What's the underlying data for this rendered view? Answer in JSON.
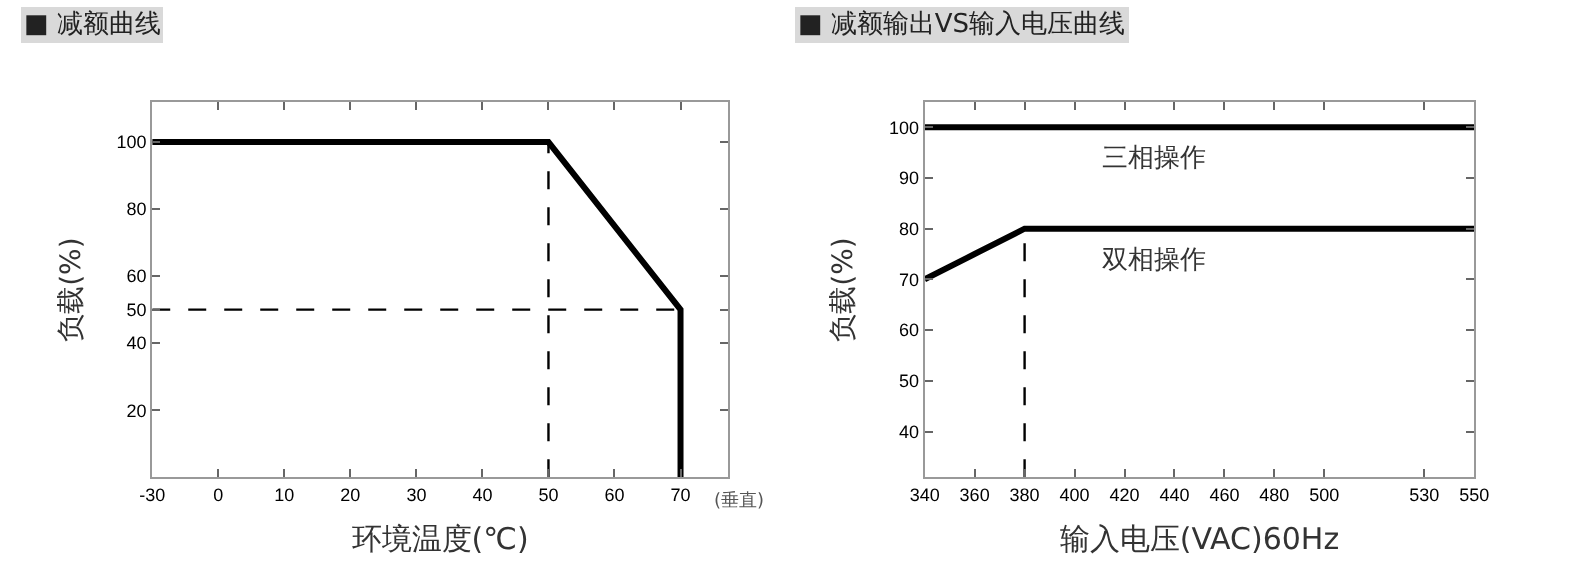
{
  "chart_data": [
    {
      "type": "line",
      "title": "■ 减额曲线",
      "xlabel": "环境温度(℃)",
      "ylabel": "负载(%)",
      "series": [
        {
          "color": "#000000",
          "x": [
            "-30",
            "50",
            "70",
            "70"
          ],
          "values": [
            100,
            100,
            50,
            0
          ],
          "line_style": "solid"
        },
        {
          "color": "#000000",
          "x": [
            "50",
            "50"
          ],
          "values": [
            0,
            100
          ],
          "line_style": "dashed"
        },
        {
          "color": "#000000",
          "x": [
            "-30",
            "70"
          ],
          "values": [
            50,
            50
          ],
          "line_style": "dashed"
        }
      ],
      "categories": [
        "-30",
        "0",
        "10",
        "20",
        "30",
        "40",
        "50",
        "60",
        "70"
      ],
      "ylim": [
        0,
        112
      ],
      "yticks": [
        20,
        40,
        50,
        60,
        80,
        100
      ],
      "annotations": [
        "(垂直)"
      ],
      "legend": false
    },
    {
      "type": "line",
      "title": "■ 减额输出VS输入电压曲线",
      "xlabel": "输入电压(VAC)60Hz",
      "ylabel": "负载(%)",
      "categories": [
        "340",
        "360",
        "380",
        "400",
        "420",
        "440",
        "460",
        "480",
        "500",
        null,
        "530",
        "550"
      ],
      "series": [
        {
          "name": "三相操作",
          "color": "#000000",
          "values": [
            100,
            100,
            100,
            100,
            100,
            100,
            100,
            100,
            100,
            100,
            100,
            100
          ],
          "line_style": "solid"
        },
        {
          "name": "双相操作",
          "color": "#000000",
          "values": [
            70,
            75,
            80,
            80,
            80,
            80,
            80,
            80,
            80,
            80,
            80,
            80
          ],
          "line_style": "solid"
        },
        {
          "color": "#000000",
          "x": [
            "380",
            "380"
          ],
          "values": [
            31,
            80
          ],
          "line_style": "dashed"
        }
      ],
      "ylim": [
        31,
        105
      ],
      "yticks": [
        40,
        50,
        60,
        70,
        80,
        90,
        100
      ],
      "legend": false
    }
  ]
}
